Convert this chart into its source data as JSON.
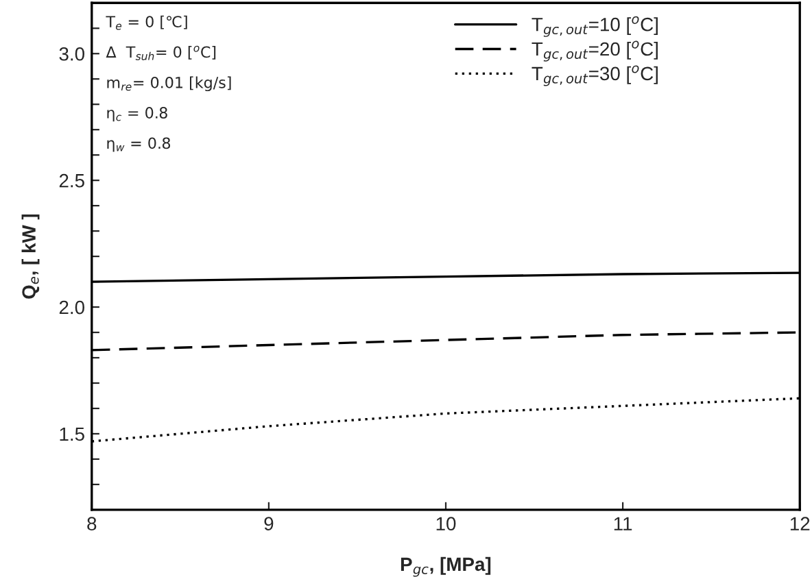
{
  "chart_data": {
    "type": "line",
    "xlabel": "P$_{gc}$, [MPa]",
    "ylabel": "Q$_{e}$, [ kW ]",
    "x": [
      8,
      9,
      10,
      11,
      12
    ],
    "series": [
      {
        "name": "T$_{gc,out}$=10 [$^{o}$C]",
        "color": "#000000",
        "line_style": "solid",
        "values": [
          2.1,
          2.11,
          2.12,
          2.13,
          2.135
        ]
      },
      {
        "name": "T$_{gc,out}$=20 [$^{o}$C]",
        "color": "#000000",
        "line_style": "dashed",
        "values": [
          1.83,
          1.85,
          1.87,
          1.89,
          1.9
        ]
      },
      {
        "name": "T$_{gc,out}$=30 [$^{o}$C]",
        "color": "#000000",
        "line_style": "dotted",
        "values": [
          1.47,
          1.53,
          1.58,
          1.61,
          1.64
        ]
      }
    ],
    "xlim": [
      8,
      12
    ],
    "xticks": [
      8,
      9,
      10,
      11,
      12
    ],
    "ylim": [
      1.2,
      3.2
    ],
    "yticks": [
      {
        "value": 1.3,
        "label": null
      },
      {
        "value": 1.4,
        "label": null
      },
      {
        "value": 1.5,
        "label": "1.5"
      },
      {
        "value": 1.6,
        "label": null
      },
      {
        "value": 1.7,
        "label": null
      },
      {
        "value": 1.8,
        "label": null
      },
      {
        "value": 1.9,
        "label": null
      },
      {
        "value": 2.0,
        "label": "2.0"
      },
      {
        "value": 2.1,
        "label": null
      },
      {
        "value": 2.2,
        "label": null
      },
      {
        "value": 2.3,
        "label": null
      },
      {
        "value": 2.4,
        "label": null
      },
      {
        "value": 2.5,
        "label": "2.5"
      },
      {
        "value": 2.6,
        "label": null
      },
      {
        "value": 2.7,
        "label": null
      },
      {
        "value": 2.8,
        "label": null
      },
      {
        "value": 2.9,
        "label": null
      },
      {
        "value": 3.0,
        "label": "3.0"
      },
      {
        "value": 3.1,
        "label": null
      }
    ],
    "annotations": [
      "T$_{e}$ = 0 [℃]",
      "Δ  T$_{suh}$= 0 [$^{o}$C]",
      "m$_{re}$= 0.01 [kg/s]",
      "η$_{c}$ = 0.8",
      "η$_{w}$ = 0.8"
    ],
    "legend": "top right",
    "grid": false
  }
}
